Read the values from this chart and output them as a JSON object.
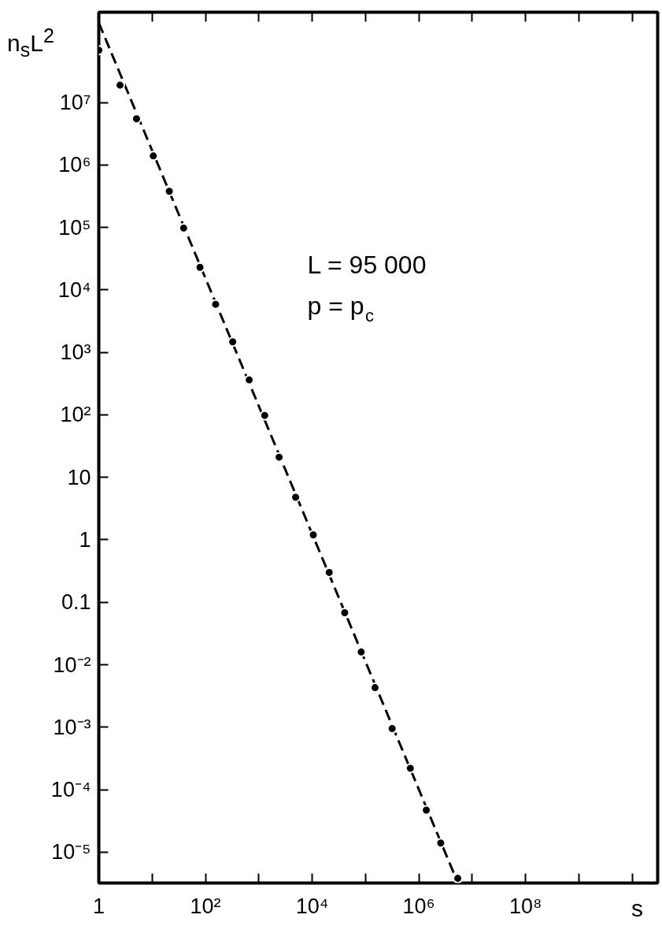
{
  "chart_data": {
    "type": "scatter",
    "xlabel": "s",
    "ylabel": "n$_{s}$L$^{2}$",
    "annotations": [
      "L = 95 000",
      "p = p$_{c}$"
    ],
    "log": "xy",
    "grid": false,
    "xlim": [
      1,
      30000000000.0
    ],
    "ylim": [
      3.2e-06,
      280000000.0
    ],
    "xticks": [
      1,
      {
        "value": 10,
        "label": null
      },
      {
        "value": 100,
        "label": "10²"
      },
      {
        "value": 1000,
        "label": null
      },
      {
        "value": 10000,
        "label": "10⁴"
      },
      {
        "value": 100000,
        "label": null
      },
      {
        "value": 1000000,
        "label": "10⁶"
      },
      {
        "value": 10000000,
        "label": null
      },
      {
        "value": 100000000,
        "label": "10⁸"
      },
      {
        "value": 1000000000,
        "label": null
      },
      {
        "value": 10000000000,
        "label": null
      }
    ],
    "yticks": [
      {
        "value": 1e-05,
        "label": "10⁻⁵"
      },
      {
        "value": 0.0001,
        "label": "10⁻⁴"
      },
      {
        "value": 0.001,
        "label": "10⁻³"
      },
      {
        "value": 0.01,
        "label": "10⁻²"
      },
      0.1,
      1,
      10,
      {
        "value": 100,
        "label": "10²"
      },
      {
        "value": 1000,
        "label": "10³"
      },
      {
        "value": 10000,
        "label": "10⁴"
      },
      {
        "value": 100000,
        "label": "10⁵"
      },
      {
        "value": 1000000,
        "label": "10⁶"
      },
      {
        "value": 10000000,
        "label": "10⁷"
      }
    ],
    "series": [
      {
        "type": "line",
        "color": "#000000",
        "line_style": "dashed",
        "marker": "none",
        "x": [
          1,
          5400000
        ],
        "values": [
          190000000,
          3.2e-06
        ]
      },
      {
        "color": "#000000",
        "marker": "circle",
        "x": [
          1,
          2.5,
          5.1,
          10.5,
          21,
          39,
          79,
          155,
          324,
          661,
          1290,
          2400,
          4900,
          10500,
          20900,
          40700,
          83000,
          151000,
          316000,
          692000,
          1380000,
          2570000,
          5370000
        ],
        "values": [
          69000000,
          19000000,
          5500000,
          1400000,
          380000,
          98000,
          23000,
          5900,
          1480,
          363,
          98,
          21,
          4.8,
          1.2,
          0.3,
          0.068,
          0.016,
          0.0043,
          0.00095,
          0.00022,
          4.7e-05,
          1.4e-05,
          3.8e-06
        ]
      }
    ]
  }
}
